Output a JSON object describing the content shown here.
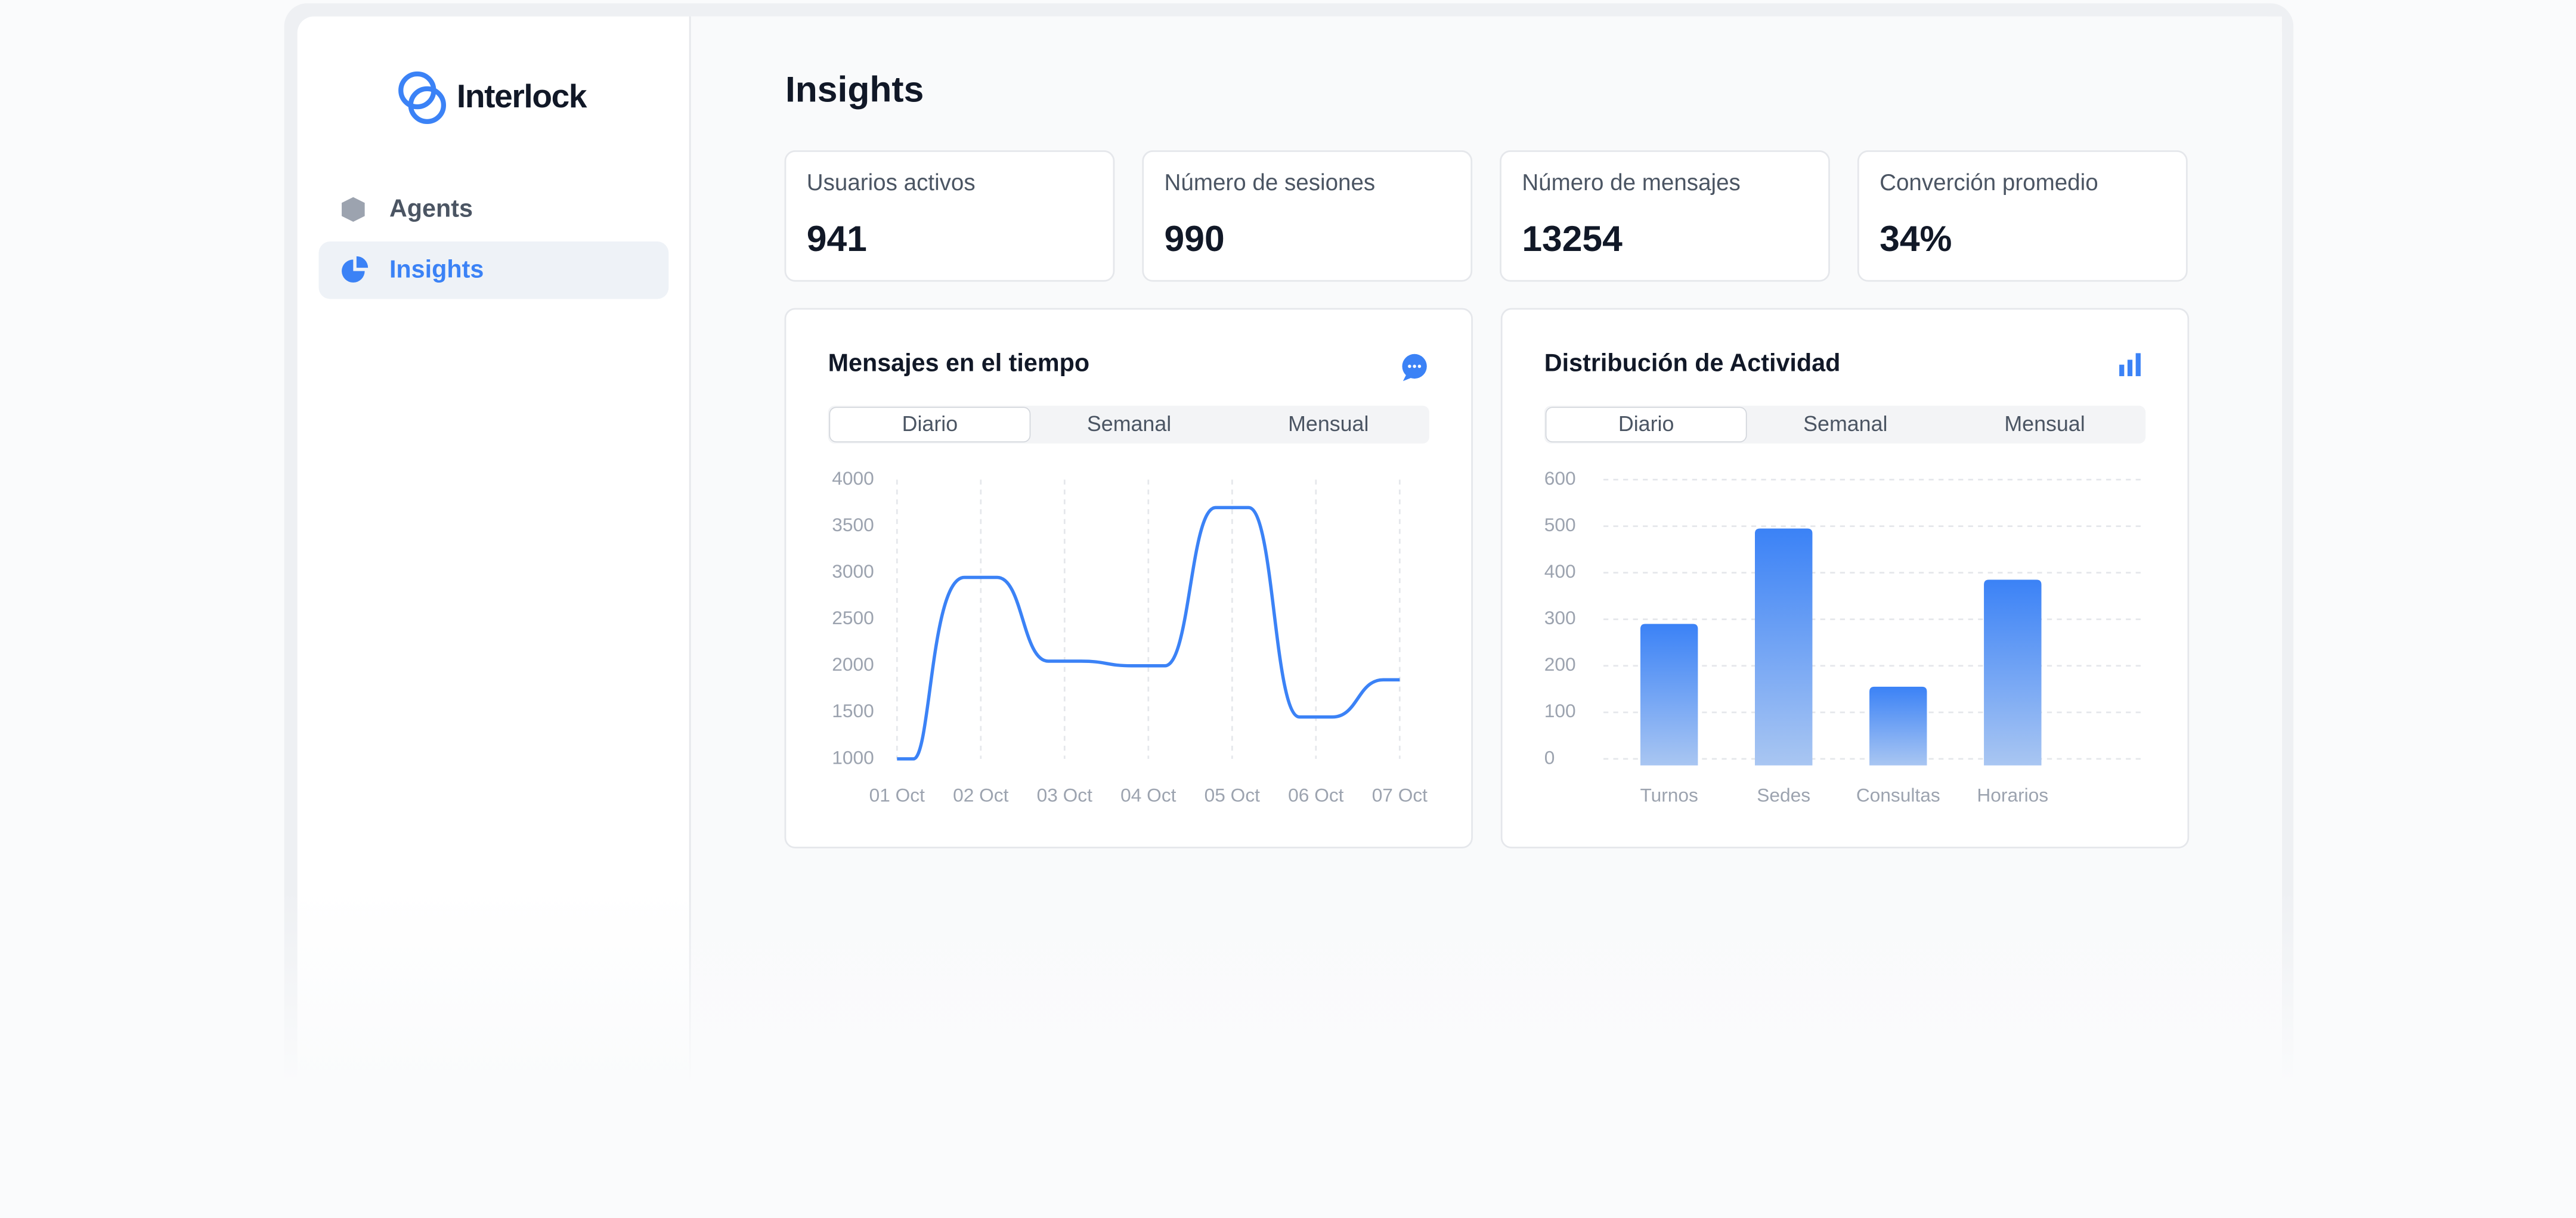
{
  "sidebar": {
    "brand": "Interlock",
    "nav": [
      "Agents",
      "Insights"
    ]
  },
  "header": {
    "title": "Insights"
  },
  "stats": [
    {
      "label": "Usuarios activos",
      "value": 941
    },
    {
      "label": "Número de sesiones",
      "value": 990
    },
    {
      "label": "Número de mensajes",
      "value": 13254
    },
    {
      "label": "Converción promedio",
      "value": "34%"
    }
  ],
  "chart_data": [
    {
      "type": "line",
      "title": "Mensajes en el tiempo",
      "tabs": [
        "Diario",
        "Semanal",
        "Mensual"
      ],
      "categories": [
        "01 Oct",
        "02 Oct",
        "03 Oct",
        "04 Oct",
        "05 Oct",
        "06 Oct",
        "07 Oct"
      ],
      "values": [
        1000,
        2950,
        2050,
        2000,
        3700,
        1450,
        1850
      ],
      "color": "#3b82f6",
      "ylim": [
        1000,
        4000
      ],
      "yticks": [
        1000,
        1500,
        2000,
        2500,
        3000,
        3500,
        4000
      ],
      "grid": true
    },
    {
      "type": "bar",
      "title": "Distribución de Actividad",
      "tabs": [
        "Diario",
        "Semanal",
        "Mensual"
      ],
      "categories": [
        "Turnos",
        "Sedes",
        "Consultas",
        "Horarios"
      ],
      "values": [
        290,
        495,
        155,
        385
      ],
      "color": "#3b82f6",
      "ylim": [
        0,
        600
      ],
      "yticks": [
        0,
        100,
        200,
        300,
        400,
        500,
        600
      ],
      "grid": true
    }
  ]
}
